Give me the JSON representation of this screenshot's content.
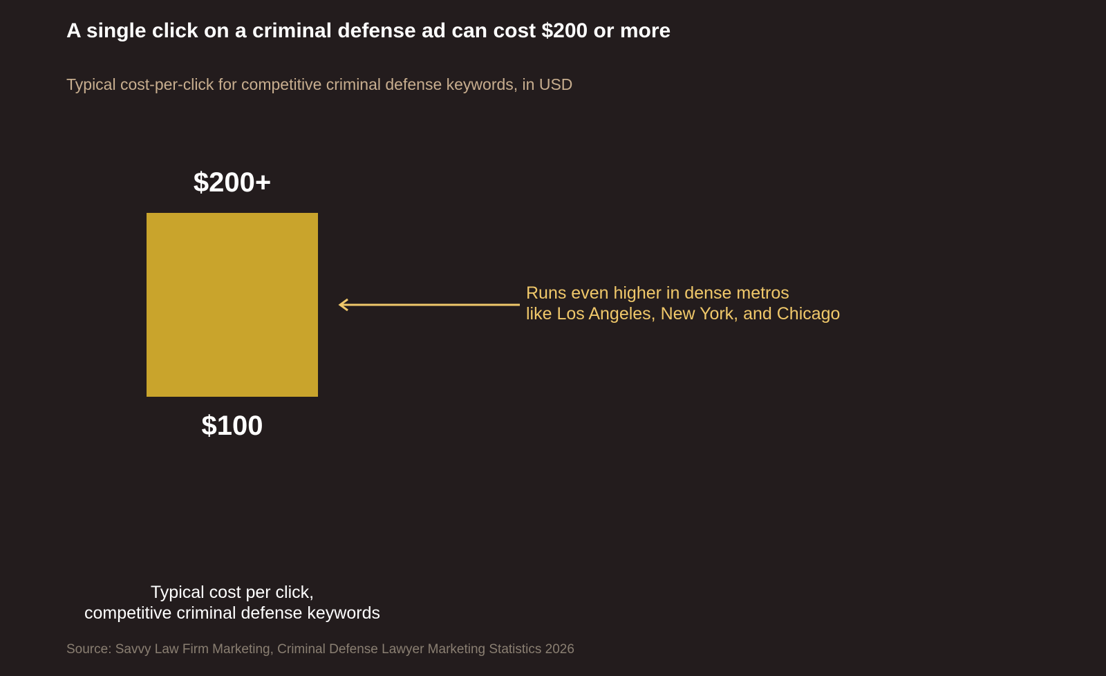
{
  "chart_data": {
    "type": "range_bar",
    "title": "A single click on a criminal defense ad can cost $200 or more",
    "subtitle": "Typical cost-per-click for competitive criminal defense keywords, in USD",
    "categories": [
      "Typical cost per click,\ncompetitive criminal defense keywords"
    ],
    "values": [
      [
        100,
        200
      ]
    ],
    "value_labels": [
      [
        "$100",
        "$200+"
      ]
    ],
    "color": "#c9a42c",
    "annotation": "Runs even higher in dense metros\nlike Los Angeles, New York, and Chicago",
    "source": "Source: Savvy Law Firm Marketing, Criminal Defense Lawyer Marketing Statistics 2026"
  }
}
